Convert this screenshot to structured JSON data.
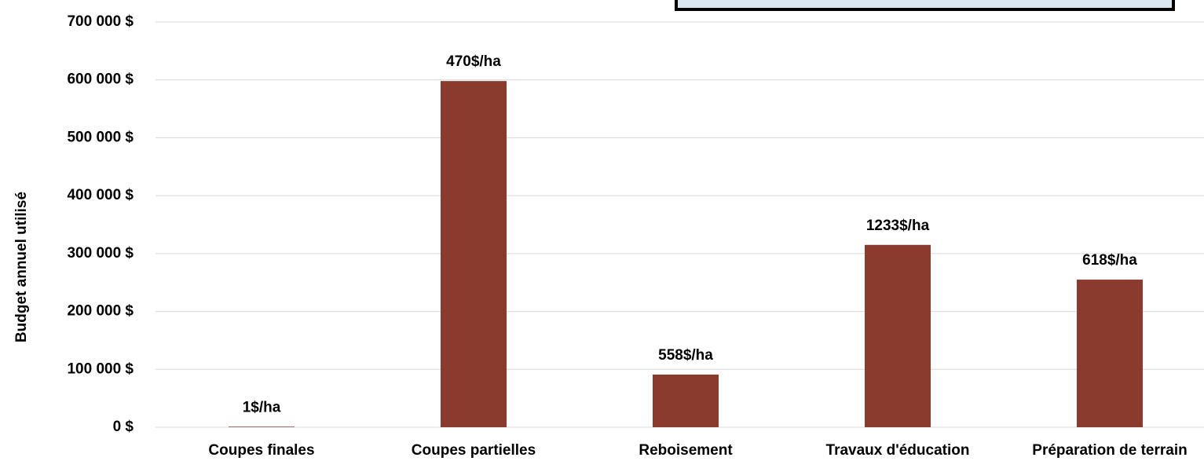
{
  "chart_data": {
    "type": "bar",
    "y_axis_label": "Budget annuel utilisé",
    "categories": [
      "Coupes finales",
      "Coupes partielles",
      "Reboisement",
      "Travaux d'éducation",
      "Préparation de terrain"
    ],
    "values": [
      1000,
      598000,
      91000,
      315000,
      255000
    ],
    "per_ha_labels": [
      "1$/ha",
      "470$/ha",
      "558$/ha",
      "1233$/ha",
      "618$/ha"
    ],
    "color": "#8b3a2e",
    "ylim": [
      0,
      700000
    ],
    "yticks": [
      {
        "value": 0,
        "label": "0 $"
      },
      {
        "value": 100000,
        "label": "100 000 $"
      },
      {
        "value": 200000,
        "label": "200 000 $"
      },
      {
        "value": 300000,
        "label": "300 000 $"
      },
      {
        "value": 400000,
        "label": "400 000 $"
      },
      {
        "value": 500000,
        "label": "500 000 $"
      },
      {
        "value": 600000,
        "label": "600 000 $"
      },
      {
        "value": 700000,
        "label": "700 000 $"
      }
    ],
    "grid": true
  }
}
